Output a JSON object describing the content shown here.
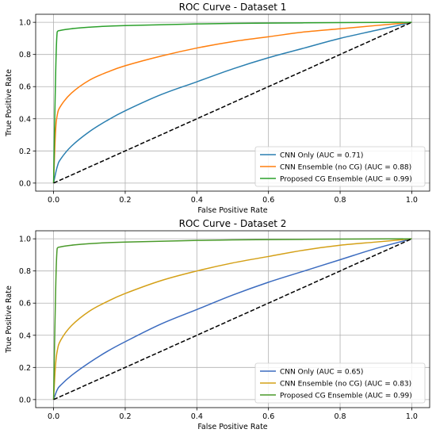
{
  "chart_data": [
    {
      "type": "line",
      "title": "ROC Curve - Dataset 1",
      "xlabel": "False Positive Rate",
      "ylabel": "True Positive Rate",
      "xlim": [
        -0.05,
        1.05
      ],
      "ylim": [
        -0.05,
        1.05
      ],
      "xticks": [
        "0.0",
        "0.2",
        "0.4",
        "0.6",
        "0.8",
        "1.0"
      ],
      "yticks": [
        "0.0",
        "0.2",
        "0.4",
        "0.6",
        "0.8",
        "1.0"
      ],
      "grid": true,
      "legend_position": "lower-right",
      "series": [
        {
          "name": "CNN Only (AUC = 0.71)",
          "color": "#2a7fb0",
          "x": [
            0,
            0.01,
            0.02,
            0.05,
            0.1,
            0.15,
            0.2,
            0.3,
            0.4,
            0.5,
            0.6,
            0.7,
            0.8,
            0.9,
            1.0
          ],
          "y": [
            0,
            0.1,
            0.15,
            0.23,
            0.32,
            0.39,
            0.45,
            0.55,
            0.63,
            0.71,
            0.78,
            0.84,
            0.9,
            0.95,
            1.0
          ]
        },
        {
          "name": "CNN Ensemble (no CG) (AUC = 0.88)",
          "color": "#ff7f0e",
          "x": [
            0,
            0.005,
            0.01,
            0.02,
            0.05,
            0.1,
            0.15,
            0.2,
            0.3,
            0.4,
            0.5,
            0.6,
            0.7,
            0.8,
            0.9,
            1.0
          ],
          "y": [
            0,
            0.3,
            0.42,
            0.48,
            0.56,
            0.64,
            0.69,
            0.73,
            0.79,
            0.84,
            0.88,
            0.91,
            0.94,
            0.96,
            0.98,
            1.0
          ]
        },
        {
          "name": "Proposed CG Ensemble (AUC = 0.99)",
          "color": "#2ca02c",
          "x": [
            0,
            0.005,
            0.01,
            0.02,
            0.05,
            0.1,
            0.2,
            0.4,
            0.6,
            0.8,
            1.0
          ],
          "y": [
            0,
            0.6,
            0.94,
            0.95,
            0.96,
            0.97,
            0.98,
            0.99,
            0.995,
            0.998,
            1.0
          ]
        },
        {
          "name": "",
          "color": "#000000",
          "dashed": true,
          "x": [
            0,
            1
          ],
          "y": [
            0,
            1
          ]
        }
      ]
    },
    {
      "type": "line",
      "title": "ROC Curve - Dataset 2",
      "xlabel": "False Positive Rate",
      "ylabel": "True Positive Rate",
      "xlim": [
        -0.05,
        1.05
      ],
      "ylim": [
        -0.05,
        1.05
      ],
      "xticks": [
        "0.0",
        "0.2",
        "0.4",
        "0.6",
        "0.8",
        "1.0"
      ],
      "yticks": [
        "0.0",
        "0.2",
        "0.4",
        "0.6",
        "0.8",
        "1.0"
      ],
      "grid": true,
      "legend_position": "lower-right",
      "series": [
        {
          "name": "CNN Only (AUC = 0.65)",
          "color": "#3b6bbf",
          "x": [
            0,
            0.01,
            0.02,
            0.05,
            0.1,
            0.15,
            0.2,
            0.3,
            0.4,
            0.5,
            0.6,
            0.7,
            0.8,
            0.9,
            1.0
          ],
          "y": [
            0,
            0.06,
            0.09,
            0.15,
            0.23,
            0.3,
            0.36,
            0.47,
            0.56,
            0.65,
            0.73,
            0.8,
            0.87,
            0.94,
            1.0
          ]
        },
        {
          "name": "CNN Ensemble (no CG) (AUC = 0.83)",
          "color": "#d4a017",
          "x": [
            0,
            0.005,
            0.01,
            0.02,
            0.05,
            0.1,
            0.15,
            0.2,
            0.3,
            0.4,
            0.5,
            0.6,
            0.7,
            0.8,
            0.9,
            1.0
          ],
          "y": [
            0,
            0.2,
            0.3,
            0.37,
            0.46,
            0.55,
            0.61,
            0.66,
            0.74,
            0.8,
            0.85,
            0.89,
            0.93,
            0.96,
            0.98,
            1.0
          ]
        },
        {
          "name": "Proposed CG Ensemble (AUC = 0.99)",
          "color": "#4a9a2a",
          "x": [
            0,
            0.005,
            0.01,
            0.02,
            0.05,
            0.1,
            0.2,
            0.4,
            0.6,
            0.8,
            1.0
          ],
          "y": [
            0,
            0.6,
            0.94,
            0.95,
            0.96,
            0.97,
            0.98,
            0.99,
            0.995,
            0.998,
            1.0
          ]
        },
        {
          "name": "",
          "color": "#000000",
          "dashed": true,
          "x": [
            0,
            1
          ],
          "y": [
            0,
            1
          ]
        }
      ]
    }
  ]
}
